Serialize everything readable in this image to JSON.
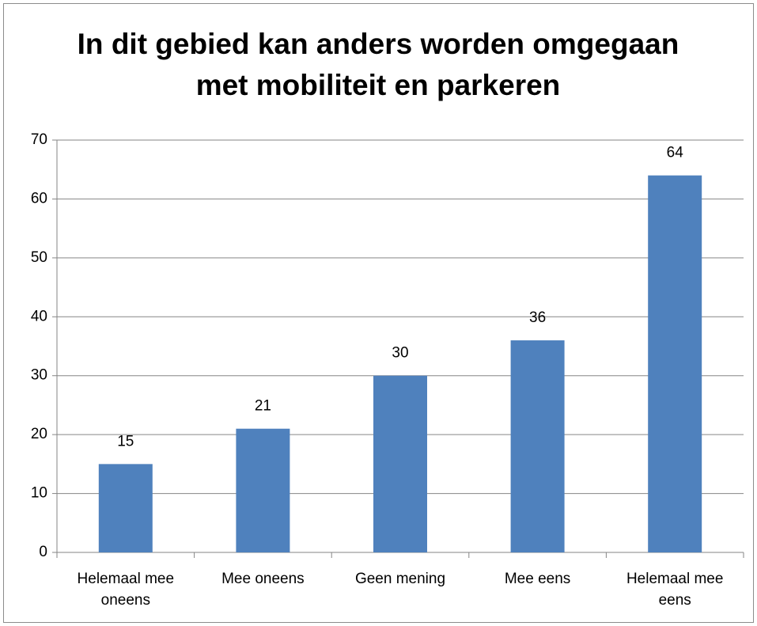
{
  "chart_data": {
    "type": "bar",
    "title": "In dit gebied kan anders worden omgegaan met mobiliteit en parkeren",
    "categories": [
      "Helemaal mee oneens",
      "Mee oneens",
      "Geen mening",
      "Mee eens",
      "Helemaal mee eens"
    ],
    "values": [
      15,
      21,
      30,
      36,
      64
    ],
    "color": "#4f81bd",
    "ylim": [
      0,
      70
    ],
    "yticks": [
      0,
      10,
      20,
      30,
      40,
      50,
      60,
      70
    ],
    "grid": true
  }
}
